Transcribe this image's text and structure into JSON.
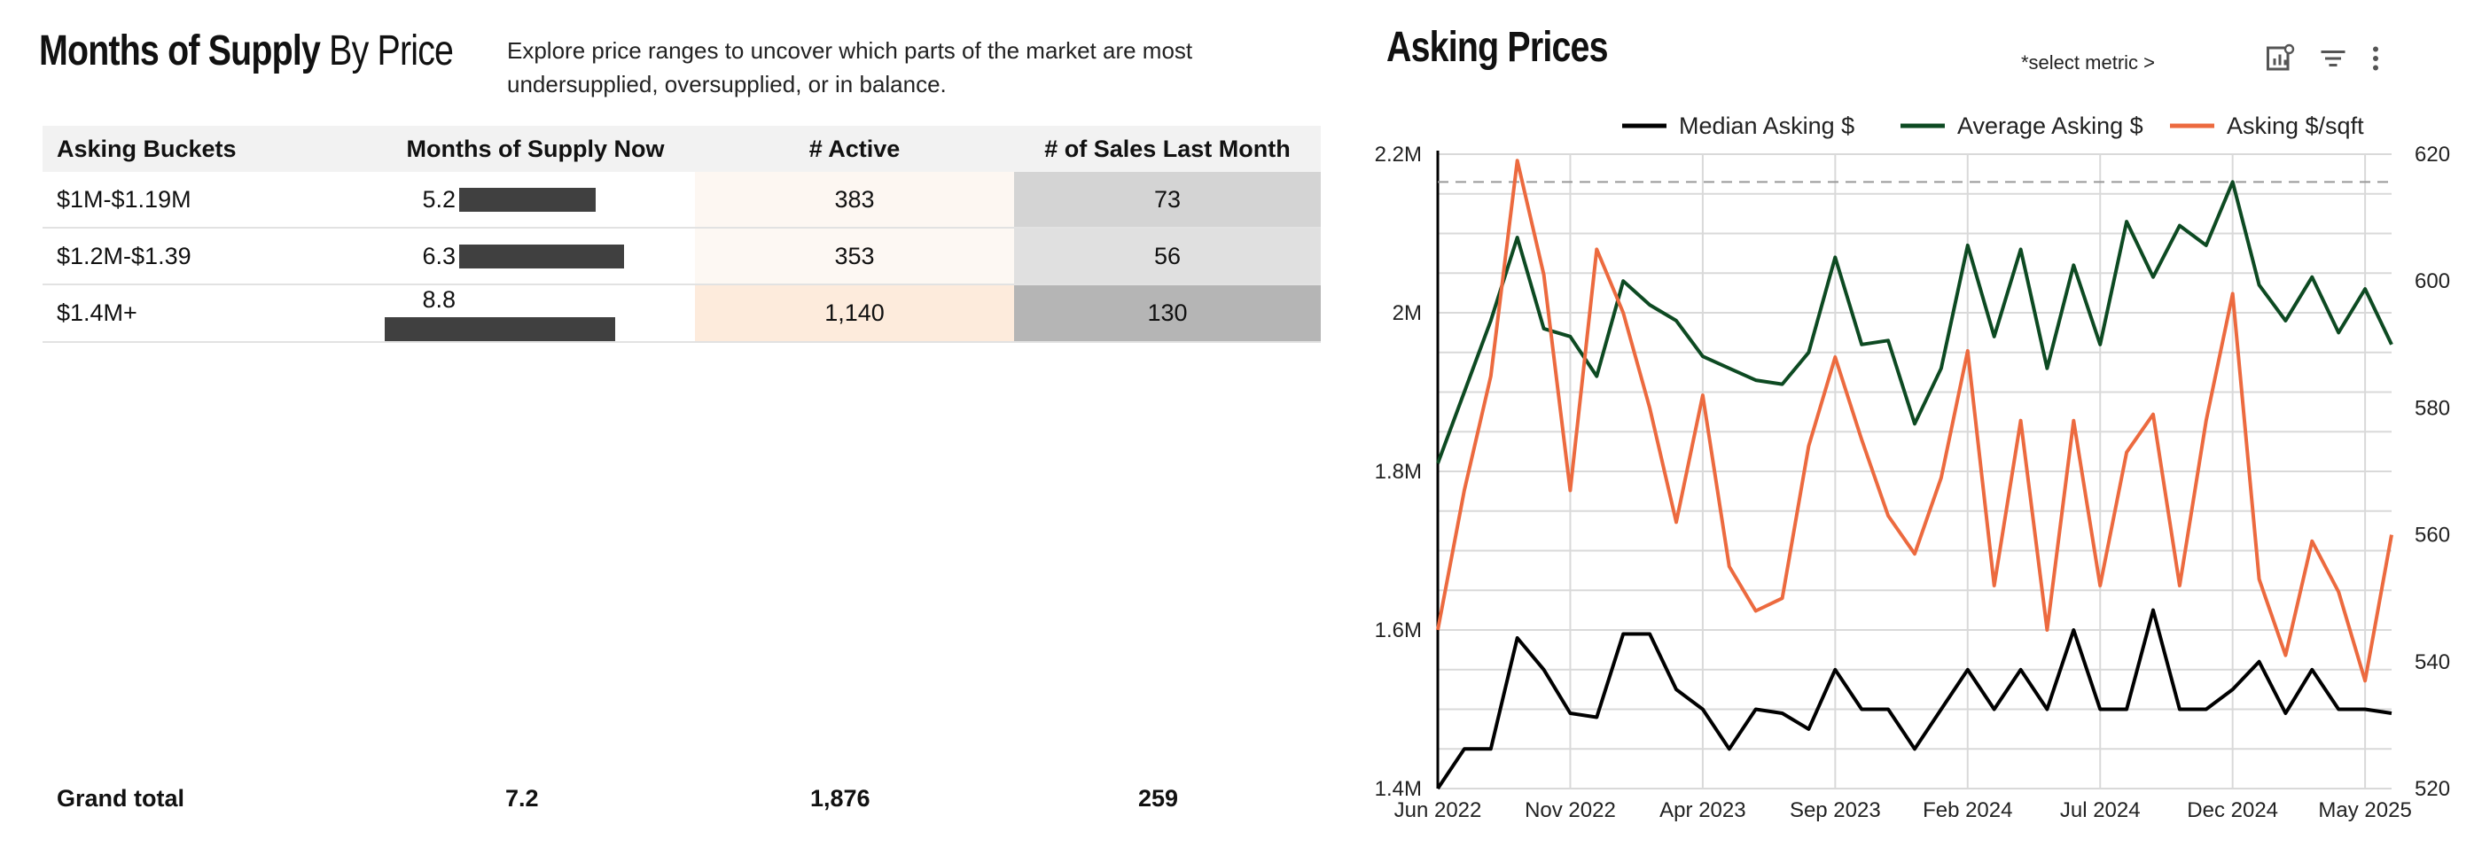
{
  "left_panel": {
    "title_bold": "Months of Supply",
    "title_rest": " By Price",
    "description": "Explore price ranges to uncover which parts of the market are most undersupplied, oversupplied, or in balance.",
    "table": {
      "headers": [
        "Asking Buckets",
        "Months of Supply Now",
        "# Active",
        "# of Sales Last Month"
      ],
      "rows": [
        {
          "bucket": "$1M-$1.19M",
          "mos": "5.2",
          "mos_value": 5.2,
          "active": "383",
          "sales": "73",
          "active_color": "#fdf7f2",
          "sales_color": "#d4d4d4"
        },
        {
          "bucket": "$1.2M-$1.39",
          "mos": "6.3",
          "mos_value": 6.3,
          "active": "353",
          "sales": "56",
          "active_color": "#fdf8f3",
          "sales_color": "#e0e0e0"
        },
        {
          "bucket": "$1.4M+",
          "mos": "8.8",
          "mos_value": 8.8,
          "active": "1,140",
          "sales": "130",
          "active_color": "#fdebdc",
          "sales_color": "#b5b5b5"
        }
      ],
      "mos_max": 8.8,
      "grand_total": {
        "label": "Grand total",
        "mos": "7.2",
        "active": "1,876",
        "sales": "259"
      }
    }
  },
  "right_panel": {
    "title": "Asking Prices",
    "select_metric": "*select metric >",
    "icons": [
      "chart-settings-icon",
      "filter-icon",
      "more-vert-icon"
    ],
    "chart_data": {
      "type": "line",
      "x_tick_labels": [
        "Jun 2022",
        "Nov 2022",
        "Apr 2023",
        "Sep 2023",
        "Feb 2024",
        "Jul 2024",
        "Dec 2024",
        "May 2025"
      ],
      "x_start": "Jun 2022",
      "x_end": "Jun 2025",
      "y_left_ticks": [
        "1.4M",
        "1.6M",
        "1.8M",
        "2M",
        "2.2M"
      ],
      "y_left_range": [
        1400000,
        2200000
      ],
      "y_right_ticks": [
        "520",
        "540",
        "560",
        "580",
        "600",
        "620"
      ],
      "y_right_range": [
        520,
        620
      ],
      "reference_line_left": 2165000,
      "grid": true,
      "legend_position": "top-right",
      "series": [
        {
          "name": "Median Asking $",
          "color": "#000000",
          "axis": "left",
          "values": [
            1400000,
            1450000,
            1450000,
            1590000,
            1550000,
            1495000,
            1490000,
            1595000,
            1595000,
            1525000,
            1500000,
            1450000,
            1500000,
            1495000,
            1475000,
            1550000,
            1500000,
            1500000,
            1450000,
            1500000,
            1550000,
            1500000,
            1550000,
            1500000,
            1600000,
            1500000,
            1500000,
            1625000,
            1500000,
            1500000,
            1525000,
            1560000,
            1495000,
            1550000,
            1500000,
            1500000,
            1495000
          ]
        },
        {
          "name": "Average Asking $",
          "color": "#0d4a22",
          "axis": "left",
          "values": [
            1810000,
            1900000,
            1990000,
            2095000,
            1980000,
            1970000,
            1920000,
            2040000,
            2010000,
            1990000,
            1945000,
            1930000,
            1915000,
            1910000,
            1950000,
            2070000,
            1960000,
            1965000,
            1860000,
            1930000,
            2085000,
            1970000,
            2080000,
            1930000,
            2060000,
            1960000,
            2115000,
            2045000,
            2110000,
            2085000,
            2165000,
            2035000,
            1990000,
            2045000,
            1975000,
            2030000,
            1960000
          ]
        },
        {
          "name": "Asking $/sqft",
          "color": "#ec6a3f",
          "axis": "right",
          "values": [
            545,
            567,
            585,
            619,
            601,
            567,
            605,
            595,
            580,
            562,
            582,
            555,
            548,
            550,
            574,
            588,
            575,
            563,
            557,
            569,
            589,
            552,
            578,
            545,
            578,
            552,
            573,
            579,
            552,
            578,
            598,
            553,
            541,
            559,
            551,
            537,
            560
          ]
        }
      ]
    }
  }
}
